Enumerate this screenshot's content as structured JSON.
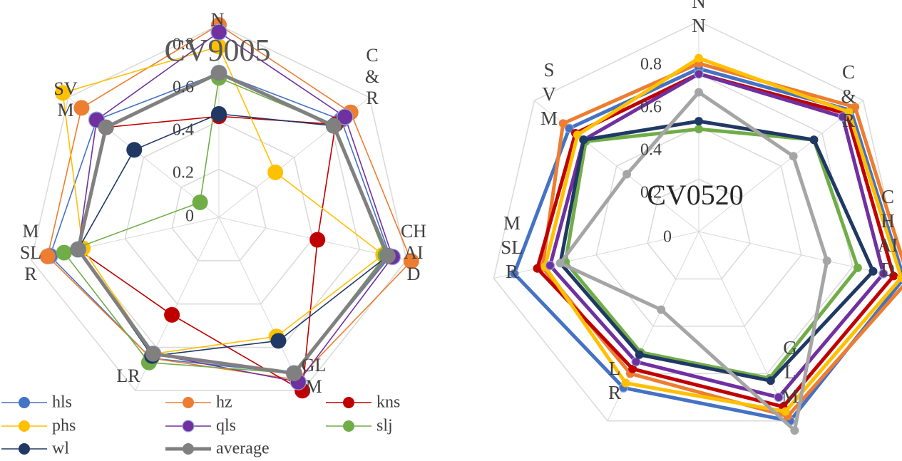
{
  "chart_data": [
    {
      "type": "radar",
      "title": "CV9005",
      "categories": [
        "N N",
        "C & R",
        "CH AI D",
        "GL M",
        "LR",
        "M SL R",
        "SV M"
      ],
      "tick_labels": [
        "0",
        "0.2",
        "0.4",
        "0.6",
        "0.8"
      ],
      "rlim": [
        0,
        0.8
      ],
      "grid": true,
      "legend_position": "bottom",
      "series": [
        {
          "name": "hls",
          "color": "#4472C4",
          "values": [
            0.6,
            0.65,
            0.73,
            0.72,
            0.65,
            0.72,
            0.65
          ]
        },
        {
          "name": "hz",
          "color": "#ED7D31",
          "values": [
            0.8,
            0.7,
            0.82,
            0.75,
            0.65,
            0.73,
            0.73
          ]
        },
        {
          "name": "kns",
          "color": "#C00000",
          "values": [
            0.42,
            0.62,
            0.42,
            0.8,
            0.45,
            0.6,
            0.6
          ]
        },
        {
          "name": "phs",
          "color": "#FFC000",
          "values": [
            0.71,
            0.3,
            0.7,
            0.55,
            0.63,
            0.58,
            0.83
          ]
        },
        {
          "name": "qls",
          "color": "#7030A0",
          "values": [
            0.77,
            0.67,
            0.74,
            0.76,
            0.63,
            0.6,
            0.65
          ]
        },
        {
          "name": "slj",
          "color": "#70AD47",
          "values": [
            0.58,
            0.61,
            0.71,
            0.72,
            0.67,
            0.66,
            0.1
          ]
        },
        {
          "name": "wl",
          "color": "#203864",
          "values": [
            0.43,
            0.61,
            0.72,
            0.57,
            0.64,
            0.6,
            0.45
          ]
        },
        {
          "name": "average",
          "color": "#808080",
          "values": [
            0.6,
            0.61,
            0.72,
            0.72,
            0.63,
            0.6,
            0.6
          ]
        }
      ],
      "legend": [
        "hls",
        "hz",
        "kns",
        "phs",
        "qls",
        "slj",
        "wl",
        "average"
      ]
    },
    {
      "type": "radar",
      "title": "CV0520",
      "categories": [
        "N N",
        "C & R",
        "C H AI D",
        "G L M",
        "L R",
        "M SL R",
        "S V M"
      ],
      "tick_labels": [
        "0",
        "0.2",
        "0.4",
        "0.6",
        "0.8"
      ],
      "rlim": [
        0,
        0.8
      ],
      "grid": true,
      "series": [
        {
          "name": "hls",
          "color": "#4472C4",
          "values": [
            0.62,
            0.74,
            0.8,
            0.8,
            0.66,
            0.72,
            0.63
          ]
        },
        {
          "name": "hz",
          "color": "#ED7D31",
          "values": [
            0.64,
            0.76,
            0.82,
            0.78,
            0.6,
            0.61,
            0.66
          ]
        },
        {
          "name": "kns",
          "color": "#C00000",
          "values": [
            0.6,
            0.72,
            0.76,
            0.74,
            0.58,
            0.63,
            0.6
          ]
        },
        {
          "name": "phs",
          "color": "#FFC000",
          "values": [
            0.66,
            0.73,
            0.79,
            0.76,
            0.64,
            0.6,
            0.59
          ]
        },
        {
          "name": "qls",
          "color": "#7030A0",
          "values": [
            0.6,
            0.7,
            0.72,
            0.7,
            0.55,
            0.58,
            0.56
          ]
        },
        {
          "name": "slj",
          "color": "#70AD47",
          "values": [
            0.39,
            0.56,
            0.62,
            0.62,
            0.51,
            0.52,
            0.55
          ]
        },
        {
          "name": "wl",
          "color": "#203864",
          "values": [
            0.42,
            0.56,
            0.68,
            0.63,
            0.52,
            0.54,
            0.56
          ]
        },
        {
          "name": "average",
          "color": "#A5A5A5",
          "values": [
            0.53,
            0.46,
            0.5,
            0.84,
            0.33,
            0.54,
            0.35
          ]
        }
      ]
    }
  ]
}
